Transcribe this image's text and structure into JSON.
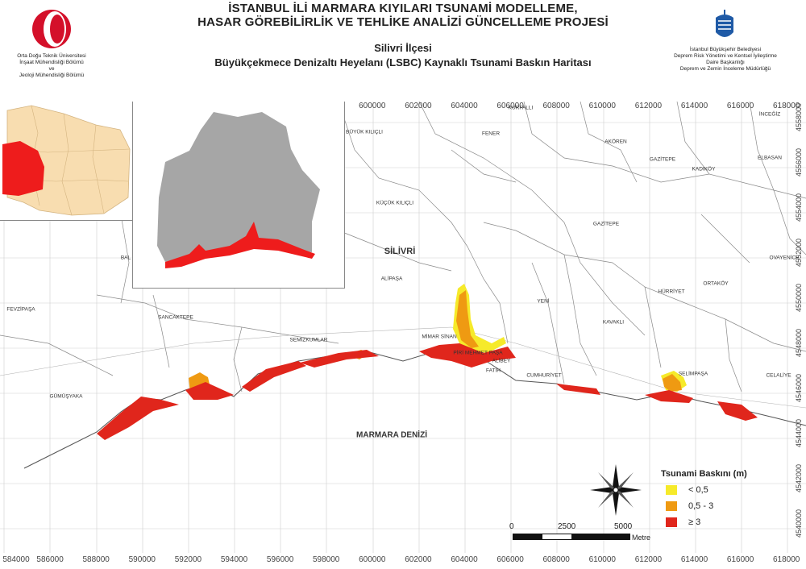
{
  "header": {
    "title_line1": "İSTANBUL İLİ MARMARA KIYILARI TSUNAMİ MODELLEME,",
    "title_line2": "HASAR GÖREBİLİRLİK VE TEHLİKE ANALİZİ GÜNCELLEME PROJESİ",
    "district": "Silivri İlçesi",
    "map_title": "Büyükçekmece Denizaltı Heyelanı (LSBC) Kaynaklı Tsunami Baskın Haritası"
  },
  "left_org": {
    "line1": "Orta Doğu Teknik Üniversitesi",
    "line2": "İnşaat Mühendisliği Bölümü",
    "line3": "ve",
    "line4": "Jeoloji Mühendisliği Bölümü",
    "logo_color": "#d4102a"
  },
  "right_org": {
    "line1": "İstanbul Büyükşehir Belediyesi",
    "line2": "Deprem Risk Yönetimi ve Kentsel İyileştirme",
    "line3": "Daire Başkanlığı",
    "line4": "Deprem ve Zemin İnceleme Müdürlüğü",
    "logo_color": "#1f5aa6"
  },
  "axes": {
    "x_ticks": [
      "584000",
      "586000",
      "588000",
      "590000",
      "592000",
      "594000",
      "596000",
      "598000",
      "600000",
      "602000",
      "604000",
      "606000",
      "608000",
      "610000",
      "612000",
      "614000",
      "616000",
      "618000"
    ],
    "y_ticks": [
      "4558000",
      "4556000",
      "4554000",
      "4552000",
      "4550000",
      "4548000",
      "4546000",
      "4544000",
      "4542000",
      "4540000"
    ]
  },
  "places": {
    "kurfalli": "KURFALLI",
    "inceğiz": "İNCEĞİZ",
    "buyuk_kilicli": "BÜYÜK KILIÇLI",
    "fener": "FENER",
    "akoren": "AKÖREN",
    "gazitepe1": "GAZİTEPE",
    "kadikoy": "KADIKÖY",
    "elbasan": "ELBASAN",
    "kucuk_kilicli": "KÜÇÜK KILIÇLI",
    "gazitepe2": "GAZİTEPE",
    "silivri": "SİLİVRİ",
    "ovayenice": "OVAYENİCE",
    "bal": "BAL",
    "alipasa": "ALİPAŞA",
    "yeni": "YENİ",
    "hurriyet": "HÜRRİYET",
    "ortakoy": "ORTAKÖY",
    "fevzipasa": "FEVZİPAŞA",
    "sancaktepe": "SANCAKTEPE",
    "kavakli": "KAVAKLI",
    "semizkumlar": "SEMİZKUMLAR",
    "mimar_sinan": "MİMAR SİNAN",
    "piri_mehmet": "PİRİ MEHMET PAŞA",
    "alibey": "ALİBEY",
    "fatih": "FATİH",
    "cumhuriyet": "CUMHURİYET",
    "selimpasa": "SELİMPAŞA",
    "celaliye": "CELALİYE",
    "gumusyaka": "GÜMÜŞYAKA",
    "marmara": "MARMARA DENİZİ"
  },
  "legend": {
    "title": "Tsunami Baskını (m)",
    "items": [
      {
        "label": "< 0,5",
        "color": "#f6ea2a"
      },
      {
        "label": "0,5 - 3",
        "color": "#ef9a12"
      },
      {
        "label": "≥  3",
        "color": "#e0261c"
      }
    ]
  },
  "scalebar": {
    "labels": [
      "0",
      "2500",
      "5000"
    ],
    "unit": "Metre"
  },
  "colors": {
    "district_fill": "#f8ddb0",
    "highlight_red": "#ee1c1c",
    "inset_gray": "#a6a6a6"
  }
}
